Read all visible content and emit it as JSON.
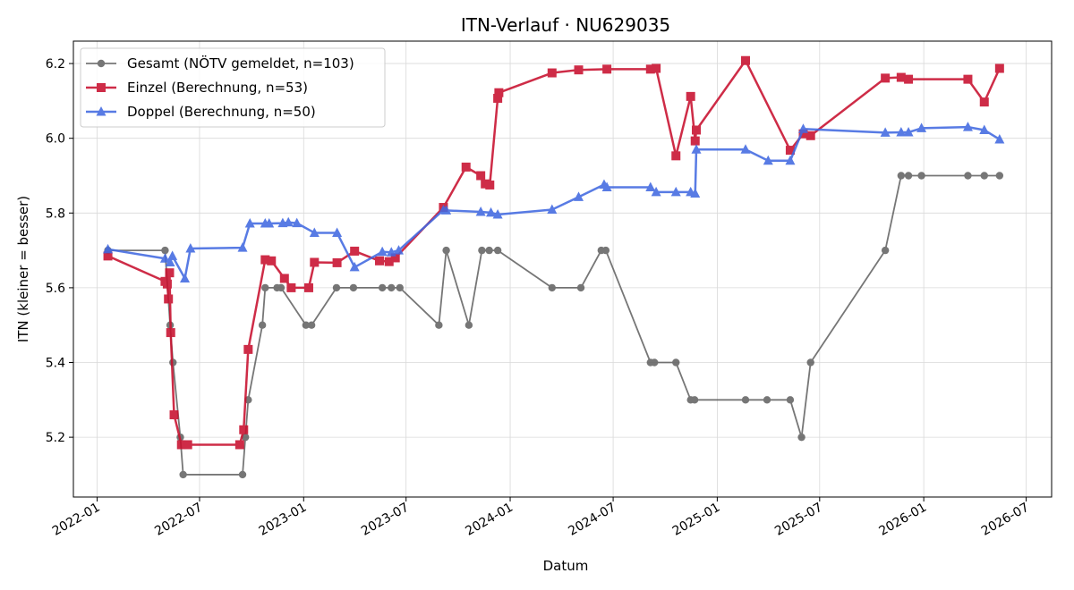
{
  "chart_data": {
    "type": "line",
    "title": "ITN-Verlauf · NU629035",
    "xlabel": "Datum",
    "ylabel": "ITN  (kleiner = besser)",
    "x_type": "date",
    "xlim": [
      "2021-11-20",
      "2026-08-15"
    ],
    "ylim": [
      5.04,
      6.26
    ],
    "x_ticks": [
      "2022-01-01",
      "2022-07-01",
      "2023-01-01",
      "2023-07-01",
      "2024-01-01",
      "2024-07-01",
      "2025-01-01",
      "2025-07-01",
      "2026-01-01",
      "2026-07-01"
    ],
    "x_tick_labels": [
      "2022-01",
      "2022-07",
      "2023-01",
      "2023-07",
      "2024-01",
      "2024-07",
      "2025-01",
      "2025-07",
      "2026-01",
      "2026-07"
    ],
    "y_ticks": [
      5.2,
      5.4,
      5.6,
      5.8,
      6.0,
      6.2
    ],
    "y_tick_labels": [
      "5.2",
      "5.4",
      "5.6",
      "5.8",
      "6.0",
      "6.2"
    ],
    "grid": true,
    "legend_position": "top-left",
    "series": [
      {
        "name": "Gesamt (NÖTV gemeldet, n=103)",
        "color": "#555555",
        "marker": "circle",
        "points": [
          [
            "2022-01-20",
            5.7
          ],
          [
            "2022-05-01",
            5.7
          ],
          [
            "2022-05-10",
            5.5
          ],
          [
            "2022-05-15",
            5.4
          ],
          [
            "2022-05-28",
            5.2
          ],
          [
            "2022-06-02",
            5.1
          ],
          [
            "2022-09-15",
            5.1
          ],
          [
            "2022-09-20",
            5.2
          ],
          [
            "2022-09-25",
            5.3
          ],
          [
            "2022-10-20",
            5.5
          ],
          [
            "2022-10-25",
            5.6
          ],
          [
            "2022-11-15",
            5.6
          ],
          [
            "2022-11-22",
            5.6
          ],
          [
            "2023-01-05",
            5.5
          ],
          [
            "2023-01-15",
            5.5
          ],
          [
            "2023-02-28",
            5.6
          ],
          [
            "2023-03-30",
            5.6
          ],
          [
            "2023-05-20",
            5.6
          ],
          [
            "2023-06-05",
            5.6
          ],
          [
            "2023-06-20",
            5.6
          ],
          [
            "2023-08-28",
            5.5
          ],
          [
            "2023-09-10",
            5.7
          ],
          [
            "2023-10-20",
            5.5
          ],
          [
            "2023-11-12",
            5.7
          ],
          [
            "2023-11-25",
            5.7
          ],
          [
            "2023-12-10",
            5.7
          ],
          [
            "2024-03-15",
            5.6
          ],
          [
            "2024-05-05",
            5.6
          ],
          [
            "2024-06-10",
            5.7
          ],
          [
            "2024-06-18",
            5.7
          ],
          [
            "2024-09-05",
            5.4
          ],
          [
            "2024-09-12",
            5.4
          ],
          [
            "2024-10-20",
            5.4
          ],
          [
            "2024-11-15",
            5.3
          ],
          [
            "2024-11-22",
            5.3
          ],
          [
            "2025-02-20",
            5.3
          ],
          [
            "2025-03-30",
            5.3
          ],
          [
            "2025-05-10",
            5.3
          ],
          [
            "2025-05-30",
            5.2
          ],
          [
            "2025-06-15",
            5.4
          ],
          [
            "2025-10-25",
            5.7
          ],
          [
            "2025-11-22",
            5.9
          ],
          [
            "2025-12-05",
            5.9
          ],
          [
            "2025-12-28",
            5.9
          ],
          [
            "2026-03-20",
            5.9
          ],
          [
            "2026-04-18",
            5.9
          ],
          [
            "2026-05-15",
            5.9
          ]
        ]
      },
      {
        "name": "Einzel (Berechnung, n=53)",
        "color": "#c8102e",
        "marker": "square",
        "points": [
          [
            "2022-01-20",
            5.685
          ],
          [
            "2022-05-01",
            5.617
          ],
          [
            "2022-05-05",
            5.61
          ],
          [
            "2022-05-07",
            5.57
          ],
          [
            "2022-05-09",
            5.64
          ],
          [
            "2022-05-11",
            5.48
          ],
          [
            "2022-05-17",
            5.26
          ],
          [
            "2022-05-30",
            5.18
          ],
          [
            "2022-06-10",
            5.18
          ],
          [
            "2022-09-10",
            5.18
          ],
          [
            "2022-09-17",
            5.22
          ],
          [
            "2022-09-25",
            5.435
          ],
          [
            "2022-10-25",
            5.675
          ],
          [
            "2022-11-05",
            5.672
          ],
          [
            "2022-11-28",
            5.625
          ],
          [
            "2022-12-10",
            5.6
          ],
          [
            "2023-01-10",
            5.6
          ],
          [
            "2023-01-20",
            5.668
          ],
          [
            "2023-03-01",
            5.667
          ],
          [
            "2023-04-01",
            5.698
          ],
          [
            "2023-05-15",
            5.672
          ],
          [
            "2023-06-01",
            5.67
          ],
          [
            "2023-06-12",
            5.68
          ],
          [
            "2023-09-05",
            5.815
          ],
          [
            "2023-10-15",
            5.923
          ],
          [
            "2023-11-10",
            5.9
          ],
          [
            "2023-11-18",
            5.878
          ],
          [
            "2023-11-26",
            5.875
          ],
          [
            "2023-12-10",
            6.107
          ],
          [
            "2023-12-12",
            6.122
          ],
          [
            "2024-03-15",
            6.175
          ],
          [
            "2024-05-01",
            6.183
          ],
          [
            "2024-06-20",
            6.185
          ],
          [
            "2024-09-05",
            6.185
          ],
          [
            "2024-09-15",
            6.187
          ],
          [
            "2024-10-20",
            5.953
          ],
          [
            "2024-11-15",
            6.112
          ],
          [
            "2024-11-23",
            5.993
          ],
          [
            "2024-11-25",
            6.022
          ],
          [
            "2025-02-20",
            6.208
          ],
          [
            "2025-05-10",
            5.968
          ],
          [
            "2025-06-02",
            6.012
          ],
          [
            "2025-06-15",
            6.007
          ],
          [
            "2025-10-25",
            6.161
          ],
          [
            "2025-11-22",
            6.163
          ],
          [
            "2025-12-05",
            6.158
          ],
          [
            "2026-03-20",
            6.158
          ],
          [
            "2026-04-18",
            6.097
          ],
          [
            "2026-05-15",
            6.187
          ]
        ]
      },
      {
        "name": "Doppel (Berechnung, n=50)",
        "color": "#4169e1",
        "marker": "triangle",
        "points": [
          [
            "2022-01-20",
            5.703
          ],
          [
            "2022-05-01",
            5.678
          ],
          [
            "2022-05-10",
            5.668
          ],
          [
            "2022-05-14",
            5.685
          ],
          [
            "2022-06-05",
            5.625
          ],
          [
            "2022-06-15",
            5.705
          ],
          [
            "2022-09-15",
            5.707
          ],
          [
            "2022-09-28",
            5.772
          ],
          [
            "2022-10-25",
            5.772
          ],
          [
            "2022-11-01",
            5.772
          ],
          [
            "2022-11-25",
            5.773
          ],
          [
            "2022-12-05",
            5.775
          ],
          [
            "2022-12-20",
            5.773
          ],
          [
            "2023-01-20",
            5.747
          ],
          [
            "2023-03-01",
            5.747
          ],
          [
            "2023-04-01",
            5.655
          ],
          [
            "2023-05-20",
            5.696
          ],
          [
            "2023-06-05",
            5.695
          ],
          [
            "2023-06-18",
            5.7
          ],
          [
            "2023-09-05",
            5.808
          ],
          [
            "2023-09-10",
            5.807
          ],
          [
            "2023-11-10",
            5.803
          ],
          [
            "2023-11-28",
            5.801
          ],
          [
            "2023-12-10",
            5.796
          ],
          [
            "2024-03-15",
            5.809
          ],
          [
            "2024-05-01",
            5.843
          ],
          [
            "2024-06-15",
            5.876
          ],
          [
            "2024-06-20",
            5.869
          ],
          [
            "2024-09-05",
            5.869
          ],
          [
            "2024-09-15",
            5.856
          ],
          [
            "2024-10-20",
            5.856
          ],
          [
            "2024-11-15",
            5.856
          ],
          [
            "2024-11-23",
            5.852
          ],
          [
            "2024-11-25",
            5.97
          ],
          [
            "2025-02-20",
            5.97
          ],
          [
            "2025-04-01",
            5.94
          ],
          [
            "2025-05-10",
            5.94
          ],
          [
            "2025-06-02",
            6.025
          ],
          [
            "2025-10-25",
            6.015
          ],
          [
            "2025-11-22",
            6.016
          ],
          [
            "2025-12-05",
            6.016
          ],
          [
            "2025-12-28",
            6.027
          ],
          [
            "2026-03-20",
            6.03
          ],
          [
            "2026-04-18",
            6.022
          ],
          [
            "2026-05-15",
            5.997
          ]
        ]
      }
    ]
  }
}
